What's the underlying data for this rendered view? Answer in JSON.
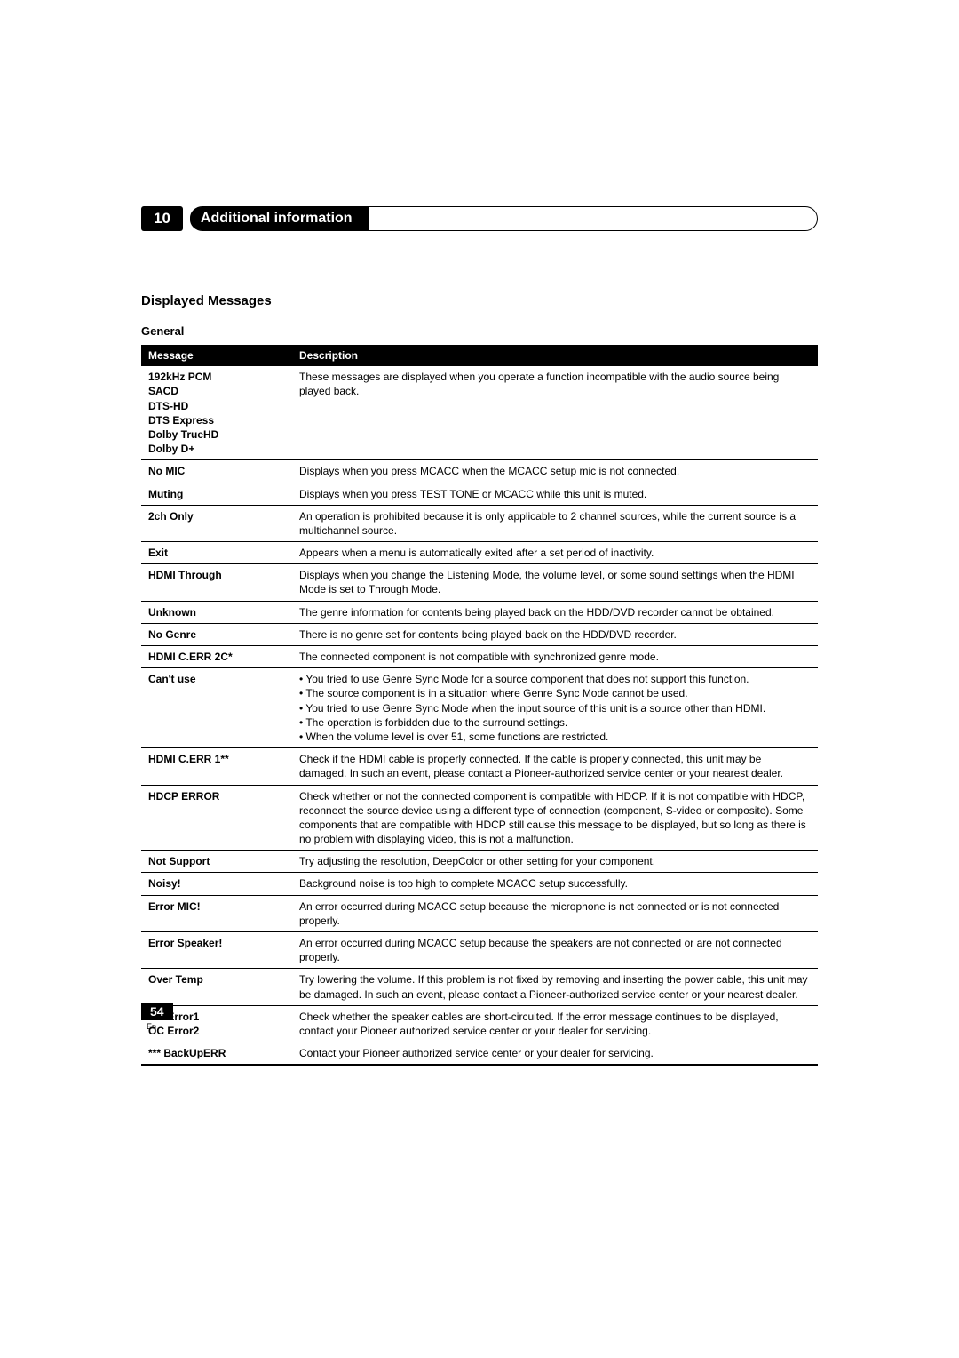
{
  "chapter": {
    "number": "10",
    "title": "Additional information"
  },
  "section_title": "Displayed Messages",
  "subsection_title": "General",
  "table": {
    "headers": {
      "message": "Message",
      "description": "Description"
    },
    "rows": [
      {
        "message_lines": [
          "192kHz PCM",
          "SACD",
          "DTS-HD",
          "DTS Express",
          "Dolby TrueHD",
          "Dolby D+"
        ],
        "description_lines": [
          "These messages are displayed when you operate a function incompatible with the audio source being played back."
        ]
      },
      {
        "message_lines": [
          "No MIC"
        ],
        "description_lines": [
          "Displays when you press MCACC when the MCACC setup mic is not connected."
        ]
      },
      {
        "message_lines": [
          "Muting"
        ],
        "description_lines": [
          "Displays when you press TEST TONE or MCACC while this unit is muted."
        ]
      },
      {
        "message_lines": [
          "2ch Only"
        ],
        "description_lines": [
          "An operation is prohibited because it is only applicable to 2 channel sources, while the current source is a multichannel source."
        ]
      },
      {
        "message_lines": [
          "Exit"
        ],
        "description_lines": [
          "Appears when a menu is automatically exited after a set period of inactivity."
        ]
      },
      {
        "message_lines": [
          "HDMI Through"
        ],
        "description_lines": [
          "Displays when you change the Listening Mode, the volume level, or some sound settings when the HDMI Mode is set to Through Mode."
        ]
      },
      {
        "message_lines": [
          "Unknown"
        ],
        "description_lines": [
          "The genre information for contents being played back on the HDD/DVD recorder cannot be obtained."
        ]
      },
      {
        "message_lines": [
          "No Genre"
        ],
        "description_lines": [
          "There is no genre set for contents being played back on the HDD/DVD recorder."
        ]
      },
      {
        "message_lines": [
          "HDMI C.ERR 2C*"
        ],
        "description_lines": [
          "The connected component is not compatible with synchronized genre mode."
        ]
      },
      {
        "message_lines": [
          "Can't use"
        ],
        "description_lines": [
          "• You tried to use Genre Sync Mode for a source component that does not support this function.",
          "• The source component is in a situation where Genre Sync Mode cannot be used.",
          "• You tried to use Genre Sync Mode when the input source of this unit is a source other than HDMI.",
          "• The operation is forbidden due to the surround settings.",
          "• When the volume level is over 51, some functions are restricted."
        ]
      },
      {
        "message_lines": [
          "HDMI C.ERR 1**"
        ],
        "description_lines": [
          "Check if the HDMI cable is properly connected. If the cable is properly connected, this unit may be damaged. In such an event, please contact a Pioneer-authorized service center or your nearest dealer."
        ]
      },
      {
        "message_lines": [
          "HDCP ERROR"
        ],
        "description_lines": [
          "Check whether or not the connected component is compatible with HDCP. If it is not compatible with HDCP, reconnect the source device using a different type of connection (component, S-video or composite). Some components that are compatible with HDCP still cause this message to be displayed, but so long as there is no problem with displaying video, this is not a malfunction."
        ]
      },
      {
        "message_lines": [
          "Not Support"
        ],
        "description_lines": [
          "Try adjusting the resolution, DeepColor or other setting for your component."
        ]
      },
      {
        "message_lines": [
          "Noisy!"
        ],
        "description_lines": [
          "Background noise is too high to complete MCACC setup successfully."
        ]
      },
      {
        "message_lines": [
          "Error MIC!"
        ],
        "description_lines": [
          "An error occurred during MCACC setup because the microphone is not connected or is not connected properly."
        ]
      },
      {
        "message_lines": [
          "Error Speaker!"
        ],
        "description_lines": [
          "An error occurred during MCACC setup because the speakers are not connected or are not connected properly."
        ]
      },
      {
        "message_lines": [
          "Over Temp"
        ],
        "description_lines": [
          "Try lowering the volume. If this problem is not fixed by removing and inserting the power cable, this unit may be damaged. In such an event, please contact a Pioneer-authorized service center or your nearest dealer."
        ]
      },
      {
        "message_lines": [
          "OC Error1",
          "OC Error2"
        ],
        "description_lines": [
          "Check whether the speaker cables are short-circuited. If the error message continues to be displayed, contact your Pioneer authorized service center or your dealer for servicing."
        ]
      },
      {
        "message_lines": [
          "*** BackUpERR"
        ],
        "description_lines": [
          "Contact your Pioneer authorized service center or your dealer for servicing."
        ]
      }
    ]
  },
  "footer": {
    "page_number": "54",
    "lang": "En"
  }
}
